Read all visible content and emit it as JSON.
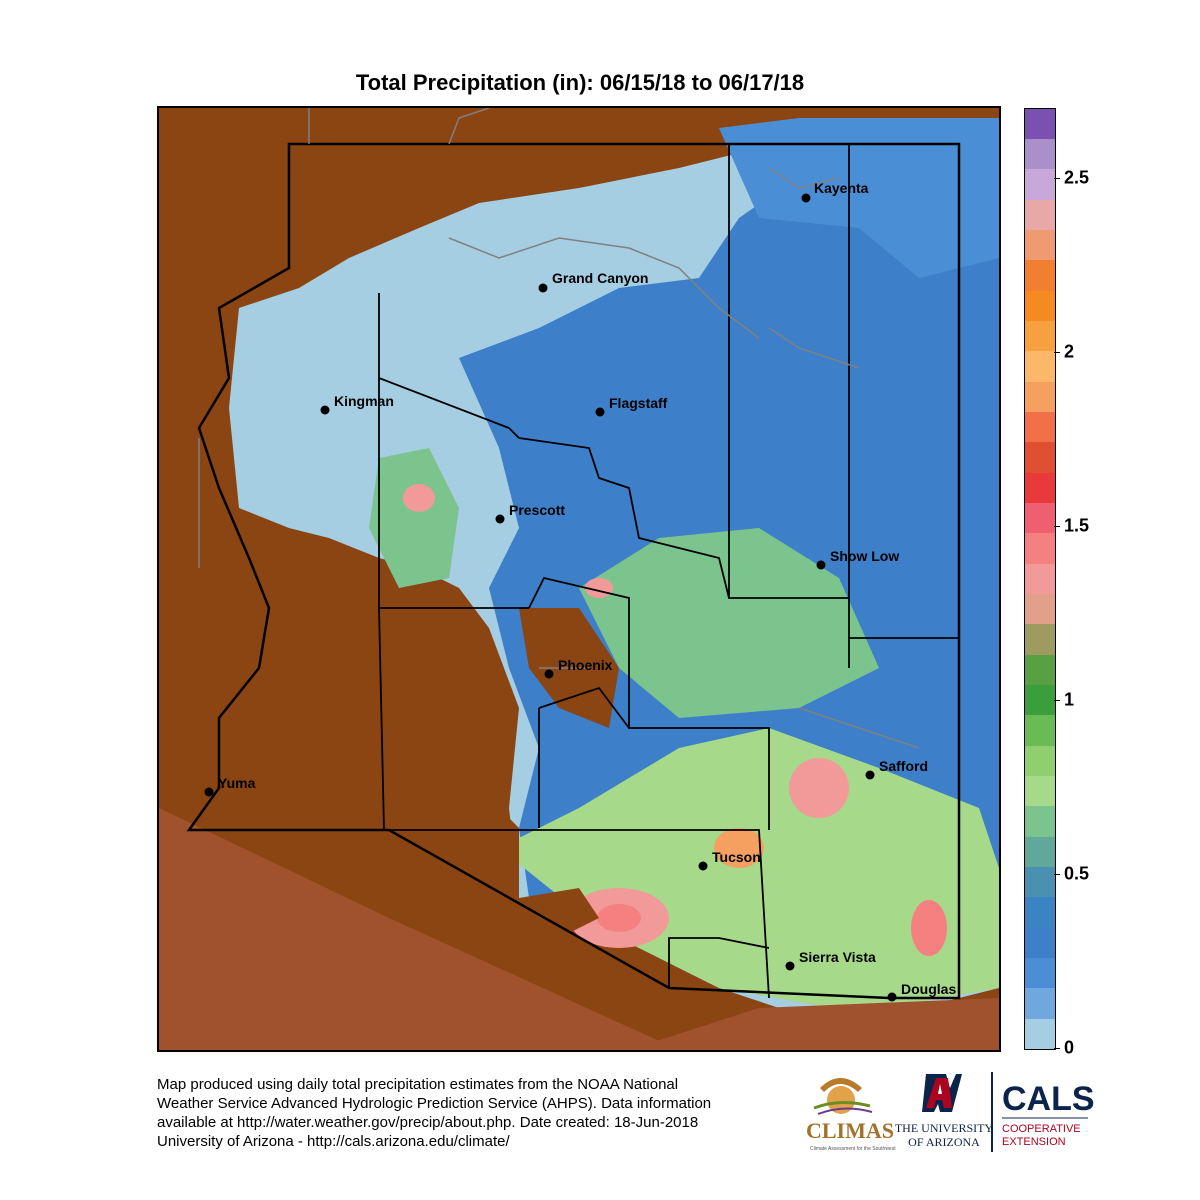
{
  "title": "Total Precipitation (in): 06/15/18 to 06/17/18",
  "map": {
    "background_color": "#8B4513",
    "cities": [
      {
        "name": "Kayenta"
      },
      {
        "name": "Grand Canyon"
      },
      {
        "name": "Kingman"
      },
      {
        "name": "Flagstaff"
      },
      {
        "name": "Prescott"
      },
      {
        "name": "Show Low"
      },
      {
        "name": "Phoenix"
      },
      {
        "name": "Safford"
      },
      {
        "name": "Yuma"
      },
      {
        "name": "Tucson"
      },
      {
        "name": "Sierra Vista"
      },
      {
        "name": "Douglas"
      }
    ]
  },
  "colorbar": {
    "colors": [
      "#a6cee3",
      "#6fa8dc",
      "#4a8fd6",
      "#3d7fc9",
      "#3a84c4",
      "#4a90b0",
      "#5fa89a",
      "#7cc48e",
      "#a6d98a",
      "#8fcf6e",
      "#68bb55",
      "#3a9e3a",
      "#58a042",
      "#9e9a60",
      "#e0a08a",
      "#f29a9a",
      "#f58080",
      "#ee6070",
      "#e83a3a",
      "#e05030",
      "#f07048",
      "#f5a060",
      "#fab868",
      "#f7a040",
      "#f58a20",
      "#f08030",
      "#ef9a70",
      "#e8a8a8",
      "#c8a8d8",
      "#a990c8",
      "#7a50b0"
    ],
    "ticks": [
      "0",
      "0.5",
      "1",
      "1.5",
      "2",
      "2.5"
    ]
  },
  "caption": [
    "Map produced using daily total precipitation estimates from the NOAA National",
    "Weather Service Advanced Hydrologic Prediction Service (AHPS). Data information",
    "available at http://water.weather.gov/precip/about.php. Date created: 18-Jun-2018",
    "University of Arizona - http://cals.arizona.edu/climate/"
  ],
  "logos": {
    "climas": "CLIMAS",
    "climas_sub": "Climate Assessment for the Southwest",
    "ua_line1": "THE UNIVERSITY",
    "ua_line2": "OF ARIZONA",
    "cals": "CALS",
    "cals_sub1": "COOPERATIVE",
    "cals_sub2": "EXTENSION"
  }
}
